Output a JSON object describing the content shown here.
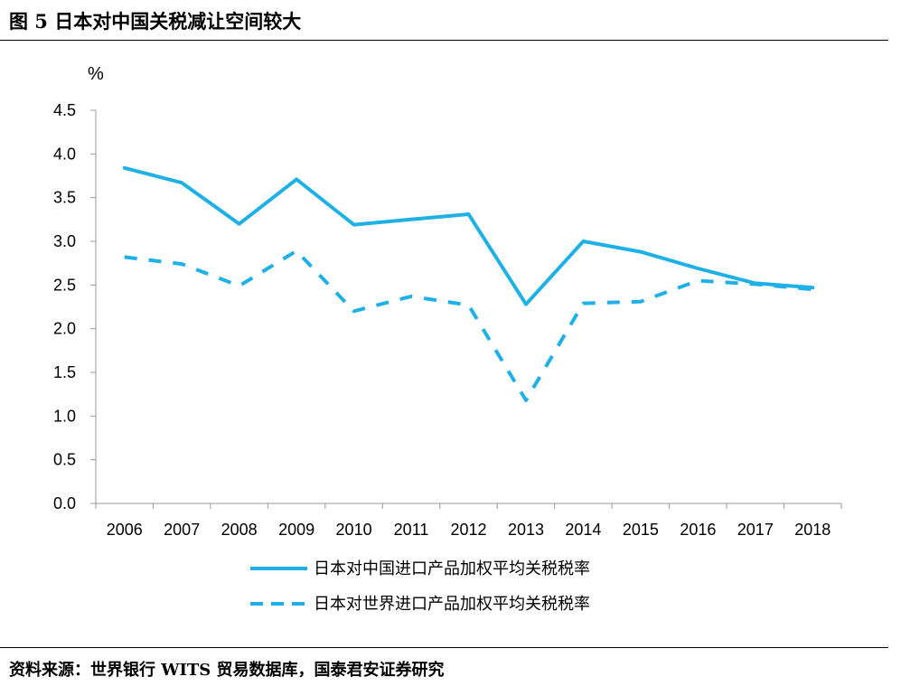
{
  "figure": {
    "title": "图 5 日本对中国关税减让空间较大",
    "source": "资料来源：世界银行 WITS 贸易数据库，国泰君安证券研究"
  },
  "chart_data": {
    "type": "line",
    "title": "",
    "ylabel": "%",
    "xlabel": "",
    "ylim": [
      0,
      4.5
    ],
    "yticks": [
      "0.0",
      "0.5",
      "1.0",
      "1.5",
      "2.0",
      "2.5",
      "3.0",
      "3.5",
      "4.0",
      "4.5"
    ],
    "categories": [
      "2006",
      "2007",
      "2008",
      "2009",
      "2010",
      "2011",
      "2012",
      "2013",
      "2014",
      "2015",
      "2016",
      "2017",
      "2018"
    ],
    "grid": false,
    "legend_position": "bottom",
    "series": [
      {
        "name": "日本对中国进口产品加权平均关税税率",
        "style": "solid",
        "color": "#1fb0e6",
        "values": [
          3.84,
          3.67,
          3.2,
          3.71,
          3.19,
          3.25,
          3.31,
          2.28,
          3.0,
          2.88,
          2.69,
          2.52,
          2.47
        ]
      },
      {
        "name": "日本对世界进口产品加权平均关税税率",
        "style": "dashed",
        "color": "#1fb0e6",
        "values": [
          2.82,
          2.74,
          2.49,
          2.89,
          2.2,
          2.37,
          2.27,
          1.18,
          2.29,
          2.31,
          2.55,
          2.51,
          2.45
        ]
      }
    ]
  }
}
